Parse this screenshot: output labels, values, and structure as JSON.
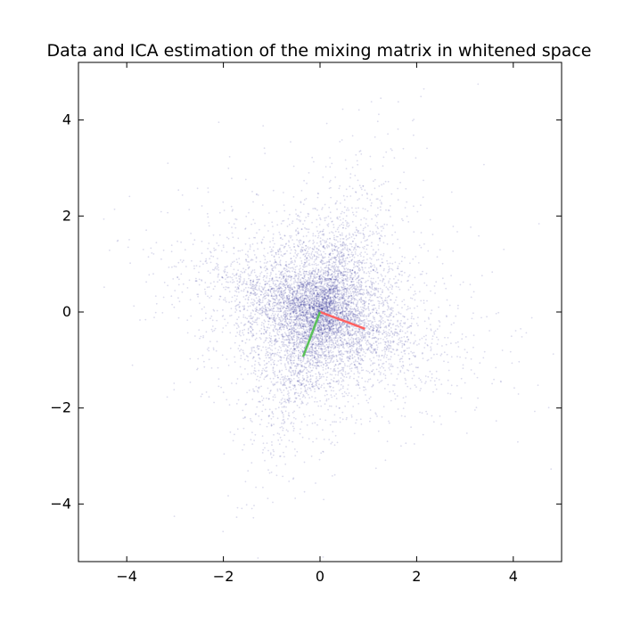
{
  "chart_data": {
    "type": "scatter",
    "title": "Data and ICA estimation of the mixing matrix in whitened space",
    "xlabel": "",
    "ylabel": "",
    "xlim": [
      -5,
      5
    ],
    "ylim": [
      -5.2,
      5.2
    ],
    "xticks": [
      -4,
      -2,
      0,
      2,
      4
    ],
    "yticks": [
      -4,
      -2,
      0,
      2,
      4
    ],
    "grid": false,
    "point_color": "#000080",
    "point_count_approx": 8000,
    "vectors": [
      {
        "color": "#ff6060",
        "x0": 0,
        "y0": 0,
        "x1": 0.93,
        "y1": -0.35
      },
      {
        "color": "#59c059",
        "x0": 0,
        "y0": 0,
        "x1": -0.35,
        "y1": -0.93
      }
    ]
  }
}
